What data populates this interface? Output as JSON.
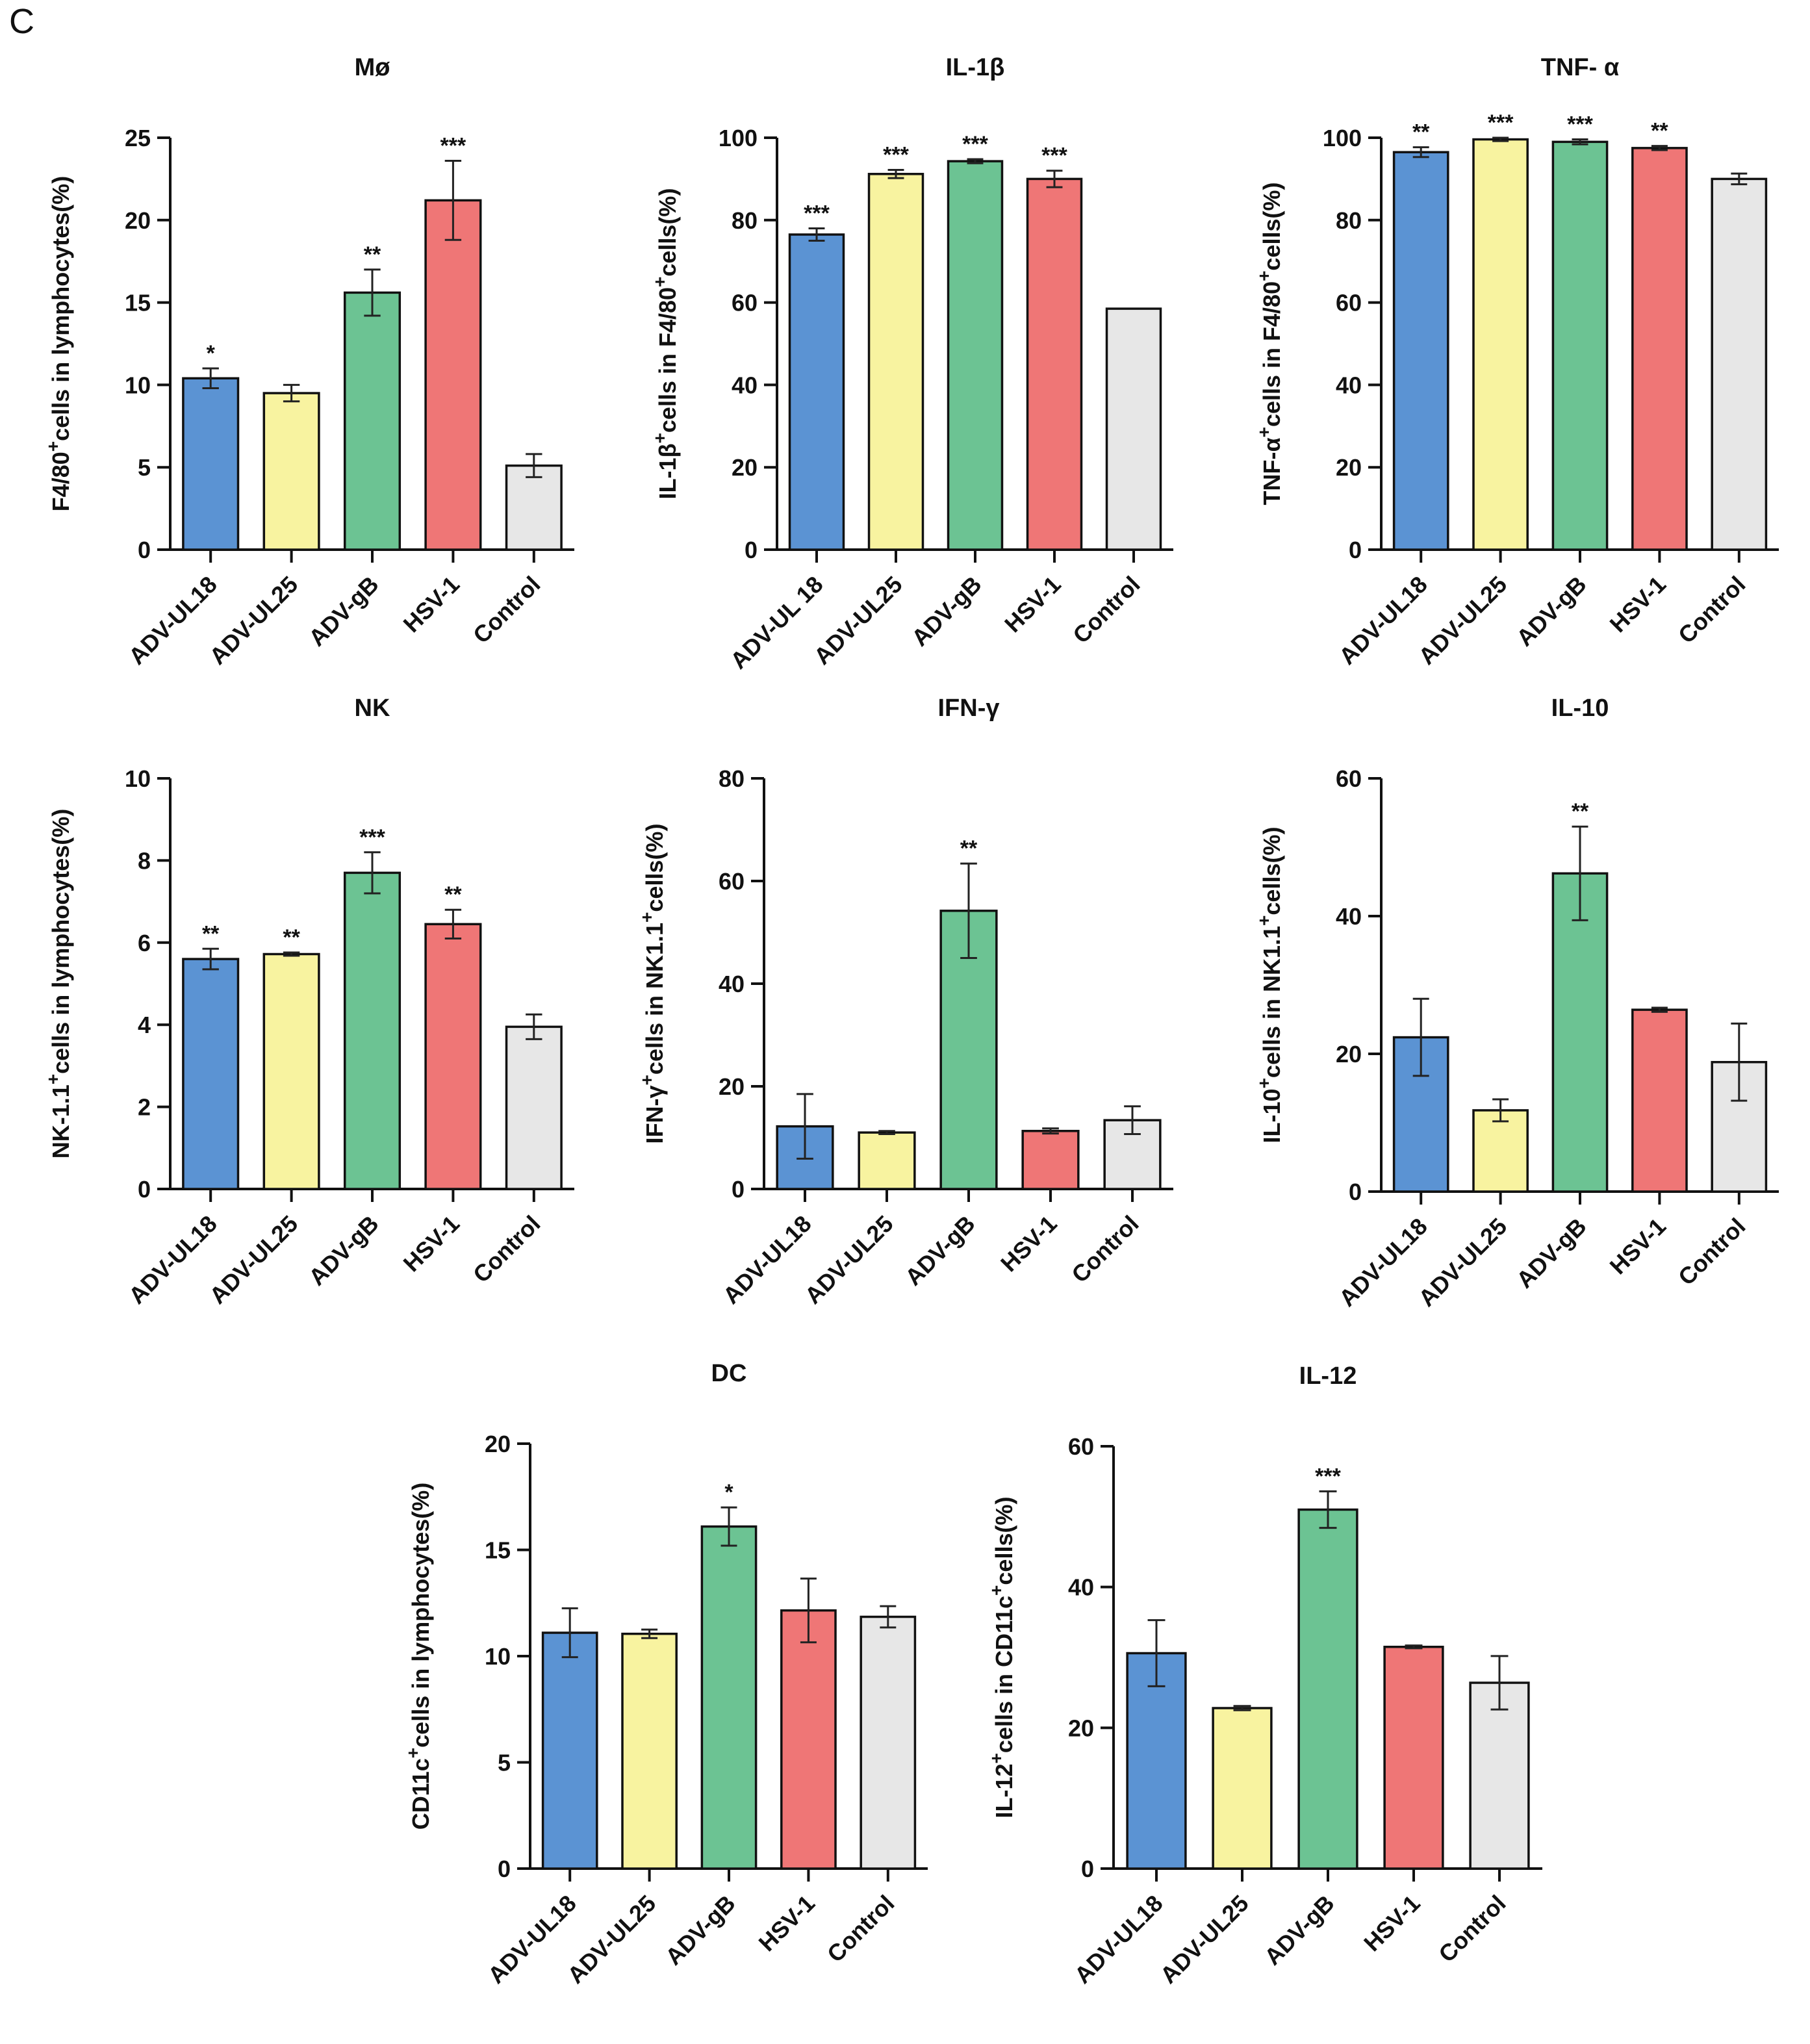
{
  "panel_label": "C",
  "colors": {
    "ADV-UL18": "#5b93d3",
    "ADV-UL25": "#f8f3a0",
    "ADV-gB": "#6cc393",
    "HSV-1": "#ef7676",
    "Control": "#e7e7e7"
  },
  "chart_data": [
    {
      "type": "bar",
      "title": "Mø",
      "ylabel_prefix": "F4/80",
      "ylabel_sup": "+",
      "ylabel_suffix": "cells in lymphocytes(%)",
      "categories": [
        "ADV-UL18",
        "ADV-UL25",
        "ADV-gB",
        "HSV-1",
        "Control"
      ],
      "values": [
        10.4,
        9.5,
        15.6,
        21.2,
        5.1
      ],
      "errors": [
        0.6,
        0.5,
        1.4,
        2.4,
        0.7
      ],
      "significance": [
        "*",
        "",
        "**",
        "***",
        ""
      ],
      "ylim": [
        0,
        25
      ],
      "yticks": [
        0,
        5,
        10,
        15,
        20,
        25
      ]
    },
    {
      "type": "bar",
      "title": "IL-1β",
      "ylabel_prefix": "IL-1β",
      "ylabel_sup": "+",
      "ylabel_suffix": "cells in F4/80",
      "ylabel_sup2": "+",
      "ylabel_suffix2": "cells(%)",
      "categories": [
        "ADV-UL 18",
        "ADV-UL25",
        "ADV-gB",
        "HSV-1",
        "Control"
      ],
      "values": [
        76.5,
        91.2,
        94.3,
        90.0,
        58.5
      ],
      "errors": [
        1.5,
        1.0,
        0.5,
        2.0,
        0
      ],
      "significance": [
        "***",
        "***",
        "***",
        "***",
        ""
      ],
      "ylim": [
        0,
        100
      ],
      "yticks": [
        0,
        20,
        40,
        60,
        80,
        100
      ]
    },
    {
      "type": "bar",
      "title": "TNF- α",
      "ylabel_prefix": "TNF-α",
      "ylabel_sup": "+",
      "ylabel_suffix": "cells in F4/80",
      "ylabel_sup2": "+",
      "ylabel_suffix2": "cells(%)",
      "categories": [
        "ADV-UL18",
        "ADV-UL25",
        "ADV-gB",
        "HSV-1",
        "Control"
      ],
      "values": [
        96.5,
        99.6,
        99.0,
        97.5,
        90.0
      ],
      "errors": [
        1.2,
        0.4,
        0.6,
        0.5,
        1.3
      ],
      "significance": [
        "**",
        "***",
        "***",
        "**",
        ""
      ],
      "ylim": [
        0,
        100
      ],
      "yticks": [
        0,
        20,
        40,
        60,
        80,
        100
      ]
    },
    {
      "type": "bar",
      "title": "NK",
      "ylabel_prefix": "NK-1.1",
      "ylabel_sup": "+",
      "ylabel_suffix": "cells in lymphocytes(%)",
      "categories": [
        "ADV-UL18",
        "ADV-UL25",
        "ADV-gB",
        "HSV-1",
        "Control"
      ],
      "values": [
        5.6,
        5.72,
        7.7,
        6.45,
        3.95
      ],
      "errors": [
        0.25,
        0.04,
        0.5,
        0.35,
        0.3
      ],
      "significance": [
        "**",
        "**",
        "***",
        "**",
        ""
      ],
      "ylim": [
        0,
        10
      ],
      "yticks": [
        0,
        2,
        4,
        6,
        8,
        10
      ]
    },
    {
      "type": "bar",
      "title": "IFN-γ",
      "ylabel_prefix": "IFN-γ",
      "ylabel_sup": "+",
      "ylabel_suffix": "cells in NK1.1",
      "ylabel_sup2": "+",
      "ylabel_suffix2": "cells(%)",
      "categories": [
        "ADV-UL18",
        "ADV-UL25",
        "ADV-gB",
        "HSV-1",
        "Control"
      ],
      "values": [
        12.2,
        11.0,
        54.2,
        11.3,
        13.4
      ],
      "errors": [
        6.3,
        0.3,
        9.2,
        0.5,
        2.7
      ],
      "significance": [
        "",
        "",
        "**",
        "",
        ""
      ],
      "ylim": [
        0,
        80
      ],
      "yticks": [
        0,
        20,
        40,
        60,
        80
      ]
    },
    {
      "type": "bar",
      "title": "IL-10",
      "ylabel_prefix": "IL-10",
      "ylabel_sup": "+",
      "ylabel_suffix": "cells in NK1.1",
      "ylabel_sup2": "+",
      "ylabel_suffix2": "cells(%)",
      "categories": [
        "ADV-UL18",
        "ADV-UL25",
        "ADV-gB",
        "HSV-1",
        "Control"
      ],
      "values": [
        22.4,
        11.8,
        46.2,
        26.4,
        18.8
      ],
      "errors": [
        5.6,
        1.6,
        6.8,
        0.3,
        5.6
      ],
      "significance": [
        "",
        "",
        "**",
        "",
        ""
      ],
      "ylim": [
        0,
        60
      ],
      "yticks": [
        0,
        20,
        40,
        60
      ]
    },
    {
      "type": "bar",
      "title": "DC",
      "ylabel_prefix": "CD11c",
      "ylabel_sup": "+",
      "ylabel_suffix": "cells in lymphocytes(%)",
      "categories": [
        "ADV-UL18",
        "ADV-UL25",
        "ADV-gB",
        "HSV-1",
        "Control"
      ],
      "values": [
        11.1,
        11.05,
        16.1,
        12.15,
        11.85
      ],
      "errors": [
        1.15,
        0.2,
        0.9,
        1.5,
        0.5
      ],
      "significance": [
        "",
        "",
        "*",
        "",
        ""
      ],
      "ylim": [
        0,
        20
      ],
      "yticks": [
        0,
        5,
        10,
        15,
        20
      ]
    },
    {
      "type": "bar",
      "title": "IL-12",
      "ylabel_prefix": "IL-12",
      "ylabel_sup": "+",
      "ylabel_suffix": "cells in CD11c",
      "ylabel_sup2": "+",
      "ylabel_suffix2": "cells(%)",
      "categories": [
        "ADV-UL18",
        "ADV-UL25",
        "ADV-gB",
        "HSV-1",
        "Control"
      ],
      "values": [
        30.6,
        22.8,
        51.0,
        31.5,
        26.4
      ],
      "errors": [
        4.7,
        0.3,
        2.6,
        0.2,
        3.8
      ],
      "significance": [
        "",
        "",
        "***",
        "",
        ""
      ],
      "ylim": [
        0,
        60
      ],
      "yticks": [
        0,
        20,
        40,
        60
      ]
    }
  ]
}
